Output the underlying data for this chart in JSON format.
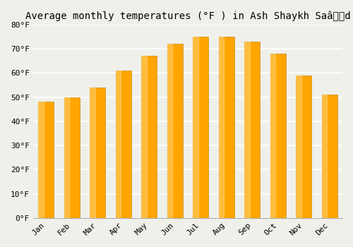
{
  "months": [
    "Jan",
    "Feb",
    "Mar",
    "Apr",
    "May",
    "Jun",
    "Jul",
    "Aug",
    "Sep",
    "Oct",
    "Nov",
    "Dec"
  ],
  "values": [
    48,
    50,
    54,
    61,
    67,
    72,
    75,
    75,
    73,
    68,
    59,
    51
  ],
  "ylim": [
    0,
    80
  ],
  "yticks": [
    0,
    10,
    20,
    30,
    40,
    50,
    60,
    70,
    80
  ],
  "ytick_labels": [
    "0°F",
    "10°F",
    "20°F",
    "30°F",
    "40°F",
    "50°F",
    "60°F",
    "70°F",
    "80°F"
  ],
  "bar_color": "#FFA500",
  "bar_highlight_color": "#FFD070",
  "bar_edge_color": "#CC8800",
  "background_color": "#f0f0eb",
  "grid_color": "#ffffff",
  "title_fontsize": 10,
  "tick_fontsize": 8,
  "font_family": "monospace"
}
